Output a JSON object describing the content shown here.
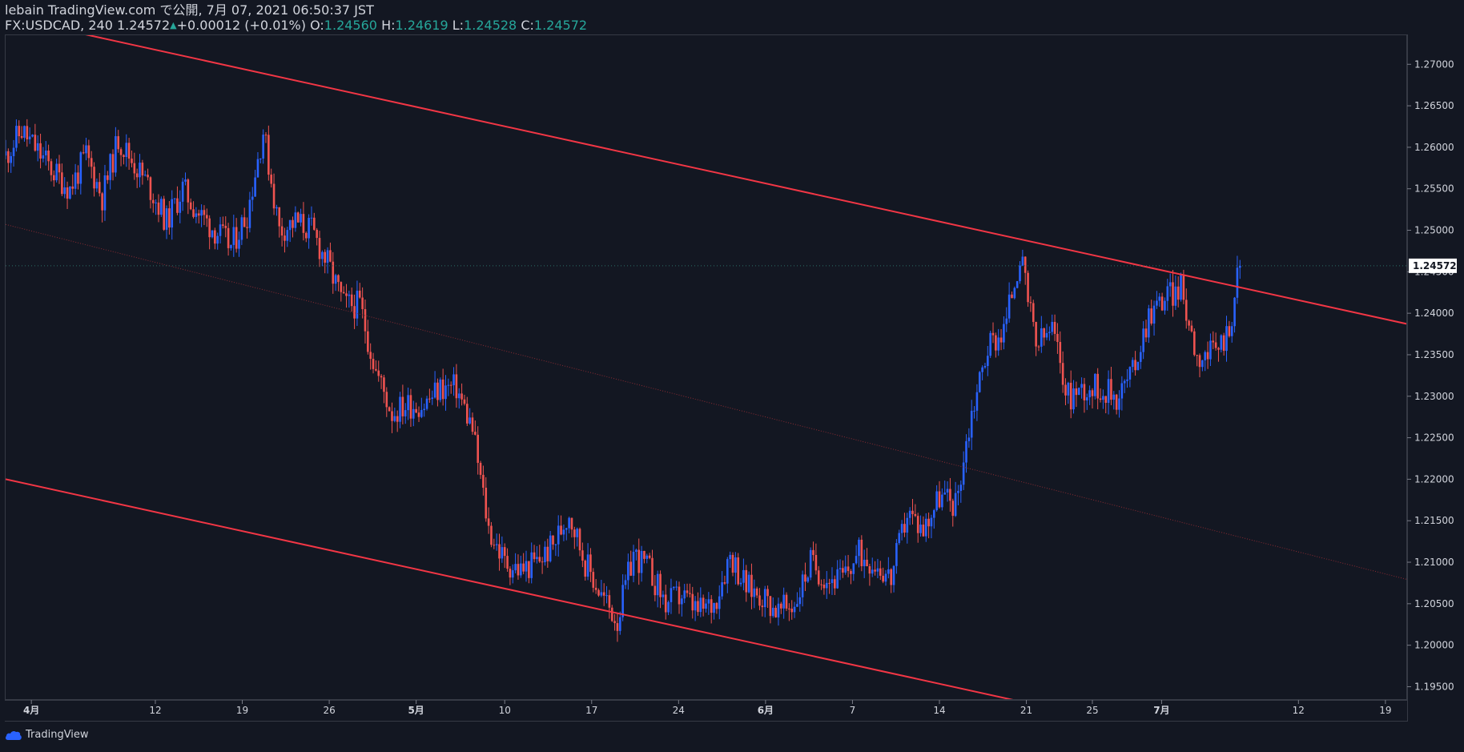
{
  "header": {
    "line1": "lebain TradingView.com で公開, 7月 07, 2021 06:50:37 JST",
    "symbol": "FX:USDCAD, 240",
    "last": "1.24572",
    "change": "+0.00012 (+0.01%)",
    "o_label": "O:",
    "o_value": "1.24560",
    "h_label": "H:",
    "h_value": "1.24619",
    "l_label": "L:",
    "l_value": "1.24528",
    "c_label": "C:",
    "c_value": "1.24572"
  },
  "logo": {
    "text": "TradingView",
    "icon": "tradingview-cloud-icon"
  },
  "colors": {
    "background": "#131722",
    "up": "#2962ff",
    "down": "#ef5350",
    "trendline": "#f23645",
    "midline": "#8a2b33",
    "text": "#d1d4dc",
    "ohlc": "#26a69a",
    "price_badge": "#ffffff"
  },
  "chart_data": {
    "type": "candlestick",
    "symbol": "FX:USDCAD",
    "interval": "240",
    "ylim": [
      1.1935,
      1.2735
    ],
    "xlim": [
      0,
      87
    ],
    "y_ticks": [
      "1.27000",
      "1.26500",
      "1.26000",
      "1.25500",
      "1.25000",
      "1.24500",
      "1.24000",
      "1.23500",
      "1.23000",
      "1.22500",
      "1.22000",
      "1.21500",
      "1.21000",
      "1.20500",
      "1.20000",
      "1.19500"
    ],
    "y_tick_values": [
      1.27,
      1.265,
      1.26,
      1.255,
      1.25,
      1.245,
      1.24,
      1.235,
      1.23,
      1.225,
      1.22,
      1.215,
      1.21,
      1.205,
      1.2,
      1.195
    ],
    "x_ticks": [
      {
        "label": "4月",
        "day": 1.6,
        "bold": true
      },
      {
        "label": "12",
        "day": 9.3
      },
      {
        "label": "19",
        "day": 14.7
      },
      {
        "label": "26",
        "day": 20.1
      },
      {
        "label": "5月",
        "day": 25.5,
        "bold": true
      },
      {
        "label": "10",
        "day": 31.0
      },
      {
        "label": "17",
        "day": 36.4
      },
      {
        "label": "24",
        "day": 41.8
      },
      {
        "label": "6月",
        "day": 47.2,
        "bold": true
      },
      {
        "label": "7",
        "day": 52.6
      },
      {
        "label": "14",
        "day": 58.0
      },
      {
        "label": "21",
        "day": 63.4
      },
      {
        "label": "25",
        "day": 67.5
      },
      {
        "label": "7月",
        "day": 71.8,
        "bold": true
      },
      {
        "label": "12",
        "day": 80.3
      },
      {
        "label": "19",
        "day": 85.7
      }
    ],
    "last_price": 1.24572,
    "last_price_label": "1.24572",
    "close_anchors": [
      [
        0,
        1.259
      ],
      [
        1,
        1.262
      ],
      [
        3,
        1.257
      ],
      [
        4,
        1.255
      ],
      [
        5,
        1.259
      ],
      [
        6,
        1.254
      ],
      [
        7,
        1.261
      ],
      [
        8,
        1.258
      ],
      [
        9,
        1.255
      ],
      [
        10,
        1.251
      ],
      [
        11,
        1.255
      ],
      [
        12,
        1.252
      ],
      [
        13,
        1.25
      ],
      [
        14,
        1.248
      ],
      [
        15,
        1.252
      ],
      [
        16,
        1.262
      ],
      [
        17,
        1.25
      ],
      [
        18,
        1.251
      ],
      [
        19,
        1.25
      ],
      [
        20,
        1.246
      ],
      [
        21,
        1.241
      ],
      [
        22,
        1.241
      ],
      [
        23,
        1.233
      ],
      [
        24,
        1.228
      ],
      [
        25,
        1.229
      ],
      [
        26,
        1.229
      ],
      [
        27,
        1.231
      ],
      [
        28,
        1.231
      ],
      [
        29,
        1.226
      ],
      [
        30,
        1.214
      ],
      [
        31,
        1.21
      ],
      [
        32,
        1.209
      ],
      [
        33,
        1.21
      ],
      [
        34,
        1.212
      ],
      [
        35,
        1.216
      ],
      [
        36,
        1.21
      ],
      [
        37,
        1.206
      ],
      [
        38,
        1.203
      ],
      [
        39,
        1.211
      ],
      [
        40,
        1.209
      ],
      [
        41,
        1.205
      ],
      [
        42,
        1.206
      ],
      [
        43,
        1.204
      ],
      [
        44,
        1.205
      ],
      [
        45,
        1.211
      ],
      [
        46,
        1.207
      ],
      [
        47,
        1.206
      ],
      [
        48,
        1.204
      ],
      [
        49,
        1.205
      ],
      [
        50,
        1.21
      ],
      [
        51,
        1.208
      ],
      [
        52,
        1.208
      ],
      [
        53,
        1.211
      ],
      [
        54,
        1.21
      ],
      [
        55,
        1.208
      ],
      [
        56,
        1.216
      ],
      [
        57,
        1.214
      ],
      [
        58,
        1.218
      ],
      [
        59,
        1.217
      ],
      [
        60,
        1.228
      ],
      [
        61,
        1.236
      ],
      [
        62,
        1.238
      ],
      [
        63,
        1.247
      ],
      [
        64,
        1.236
      ],
      [
        65,
        1.238
      ],
      [
        66,
        1.23
      ],
      [
        67,
        1.231
      ],
      [
        68,
        1.231
      ],
      [
        69,
        1.23
      ],
      [
        70,
        1.233
      ],
      [
        71,
        1.24
      ],
      [
        72,
        1.242
      ],
      [
        73,
        1.243
      ],
      [
        74,
        1.235
      ],
      [
        75,
        1.235
      ],
      [
        76,
        1.238
      ],
      [
        76.6,
        1.2457
      ]
    ],
    "trendlines": [
      {
        "name": "upper-channel",
        "style": "solid",
        "p1": [
          0,
          1.2757
        ],
        "p2": [
          87.3,
          1.2386
        ]
      },
      {
        "name": "lower-channel",
        "style": "solid",
        "p1": [
          0,
          1.22
        ],
        "p2": [
          87.3,
          1.1829
        ]
      },
      {
        "name": "mid-channel",
        "style": "dotted",
        "p1": [
          0,
          1.2507
        ],
        "p2": [
          87.3,
          1.2078
        ]
      }
    ],
    "grid": false,
    "legend": "none"
  }
}
